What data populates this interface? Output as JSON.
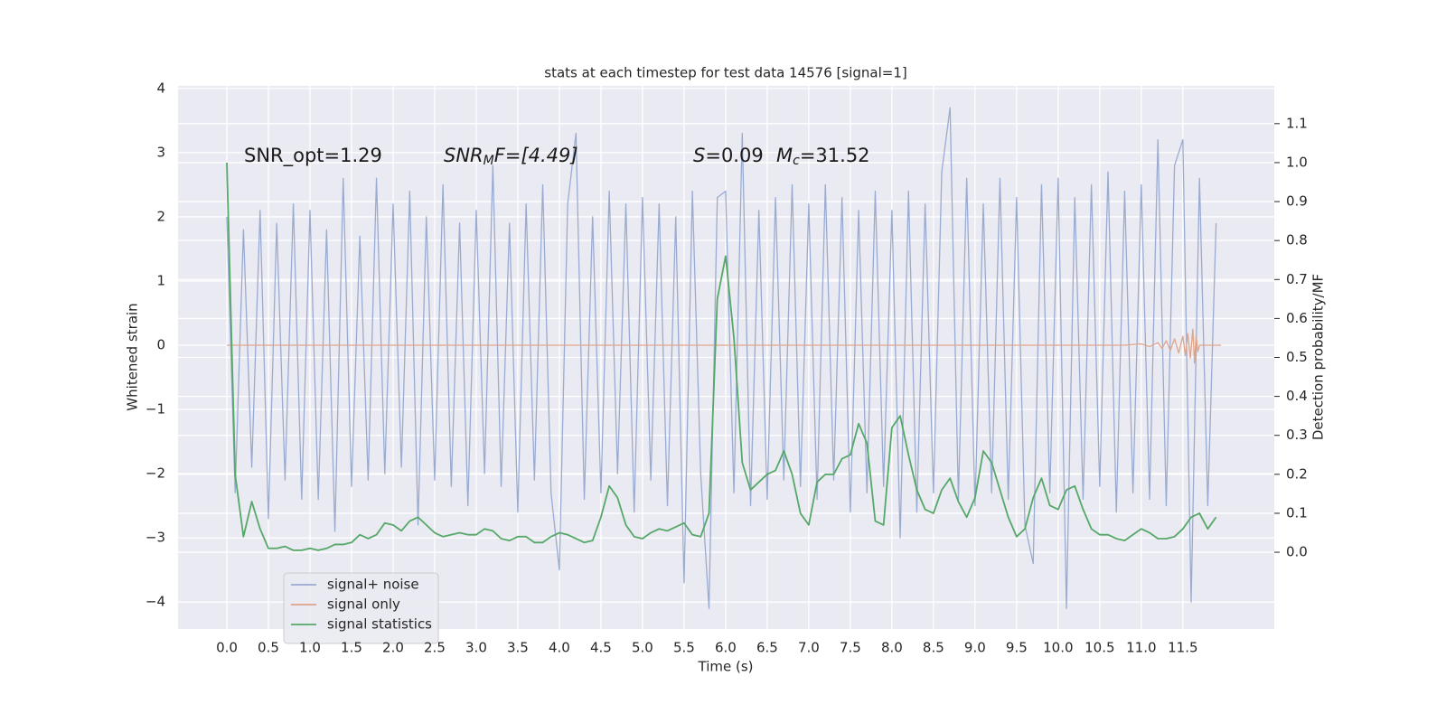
{
  "chart_data": {
    "type": "line",
    "title": "stats at each timestep for test data 14576 [signal=1]",
    "xlabel": "Time (s)",
    "ylabel": "Whitened strain",
    "y2label": "Detection probability/MF",
    "annotations": [
      [
        "SNR_opt=1.29"
      ],
      [
        "SNR",
        "M",
        "F=[4.49]"
      ],
      [
        "S",
        "=0.09"
      ],
      [
        "M",
        "c",
        "=31.52"
      ]
    ],
    "x": [
      0.0,
      0.1,
      0.2,
      0.3,
      0.4,
      0.5,
      0.6,
      0.7,
      0.8,
      0.9,
      1.0,
      1.1,
      1.2,
      1.3,
      1.4,
      1.5,
      1.6,
      1.7,
      1.8,
      1.9,
      2.0,
      2.1,
      2.2,
      2.3,
      2.4,
      2.5,
      2.6,
      2.7,
      2.8,
      2.9,
      3.0,
      3.1,
      3.2,
      3.3,
      3.4,
      3.5,
      3.6,
      3.7,
      3.8,
      3.9,
      4.0,
      4.1,
      4.2,
      4.3,
      4.4,
      4.5,
      4.6,
      4.7,
      4.8,
      4.9,
      5.0,
      5.1,
      5.2,
      5.3,
      5.4,
      5.5,
      5.6,
      5.7,
      5.8,
      5.9,
      6.0,
      6.1,
      6.2,
      6.3,
      6.4,
      6.5,
      6.6,
      6.7,
      6.8,
      6.9,
      7.0,
      7.1,
      7.2,
      7.3,
      7.4,
      7.5,
      7.6,
      7.7,
      7.8,
      7.9,
      8.0,
      8.1,
      8.2,
      8.3,
      8.4,
      8.5,
      8.6,
      8.7,
      8.8,
      8.9,
      9.0,
      9.1,
      9.2,
      9.3,
      9.4,
      9.5,
      9.6,
      9.7,
      9.8,
      9.9,
      10.0,
      10.1,
      10.2,
      10.3,
      10.4,
      10.5,
      10.6,
      10.7,
      10.8,
      10.9,
      11.0,
      11.1,
      11.2,
      11.3,
      11.4,
      11.5,
      11.6,
      11.7,
      11.8,
      11.9
    ],
    "series": [
      {
        "name": "signal+ noise",
        "color": "#9aabd1",
        "values": [
          2.0,
          -2.3,
          1.8,
          -1.9,
          2.1,
          -2.7,
          1.9,
          -2.1,
          2.2,
          -2.4,
          2.1,
          -2.4,
          1.8,
          -2.9,
          2.6,
          -2.2,
          1.7,
          -2.1,
          2.6,
          -2.0,
          2.2,
          -1.9,
          2.4,
          -2.8,
          2.0,
          -2.1,
          2.5,
          -2.2,
          1.9,
          -2.5,
          2.1,
          -2.0,
          2.8,
          -2.2,
          1.9,
          -2.6,
          2.2,
          -2.1,
          2.5,
          -2.3,
          -3.5,
          2.2,
          3.3,
          -2.4,
          2.0,
          -2.3,
          2.4,
          -2.0,
          2.2,
          -2.6,
          2.3,
          -2.1,
          2.2,
          -2.5,
          2.0,
          -3.7,
          2.4,
          -2.0,
          -4.1,
          2.3,
          2.4,
          -2.3,
          3.3,
          -2.5,
          2.1,
          -2.4,
          2.3,
          -2.1,
          2.5,
          -2.2,
          2.2,
          -2.4,
          2.5,
          -2.1,
          2.3,
          -2.6,
          2.1,
          -2.3,
          2.4,
          -2.2,
          2.1,
          -3.0,
          2.4,
          -2.6,
          2.2,
          -2.3,
          2.7,
          3.7,
          -2.4,
          2.6,
          -2.5,
          2.2,
          -2.3,
          2.6,
          -2.4,
          2.3,
          -2.8,
          -3.4,
          2.5,
          -2.3,
          2.6,
          -4.1,
          2.3,
          -2.4,
          2.5,
          -2.2,
          2.7,
          -2.6,
          2.4,
          -2.3,
          2.5,
          -2.4,
          3.2,
          -2.5,
          2.8,
          3.2,
          -4.0,
          2.6,
          -2.5,
          1.9
        ]
      },
      {
        "name": "signal only",
        "color": "#dfa58b",
        "x": [
          0,
          10.8,
          11.0,
          11.1,
          11.2,
          11.25,
          11.3,
          11.35,
          11.4,
          11.45,
          11.5,
          11.53,
          11.56,
          11.59,
          11.62,
          11.64,
          11.66,
          11.68,
          11.7,
          11.96
        ],
        "values": [
          0,
          0,
          0.02,
          -0.02,
          0.04,
          -0.05,
          0.07,
          -0.08,
          0.1,
          -0.12,
          0.14,
          -0.16,
          0.18,
          -0.2,
          0.25,
          -0.28,
          0.15,
          -0.1,
          0.0,
          0
        ]
      },
      {
        "name": "signal statistics",
        "color": "#55a868",
        "axis": "y2",
        "values": [
          1.0,
          0.2,
          0.04,
          0.13,
          0.06,
          0.01,
          0.01,
          0.015,
          0.005,
          0.005,
          0.01,
          0.005,
          0.01,
          0.02,
          0.02,
          0.025,
          0.045,
          0.035,
          0.045,
          0.075,
          0.07,
          0.055,
          0.08,
          0.09,
          0.07,
          0.05,
          0.04,
          0.045,
          0.05,
          0.045,
          0.045,
          0.06,
          0.055,
          0.035,
          0.03,
          0.04,
          0.04,
          0.025,
          0.025,
          0.04,
          0.05,
          0.045,
          0.035,
          0.025,
          0.03,
          0.09,
          0.17,
          0.14,
          0.07,
          0.04,
          0.035,
          0.05,
          0.06,
          0.055,
          0.065,
          0.075,
          0.045,
          0.04,
          0.1,
          0.65,
          0.76,
          0.55,
          0.23,
          0.16,
          0.18,
          0.2,
          0.21,
          0.26,
          0.2,
          0.1,
          0.07,
          0.18,
          0.2,
          0.2,
          0.24,
          0.25,
          0.33,
          0.28,
          0.08,
          0.07,
          0.32,
          0.35,
          0.25,
          0.16,
          0.11,
          0.1,
          0.16,
          0.19,
          0.13,
          0.09,
          0.14,
          0.26,
          0.23,
          0.16,
          0.09,
          0.04,
          0.06,
          0.14,
          0.19,
          0.12,
          0.11,
          0.16,
          0.17,
          0.11,
          0.06,
          0.045,
          0.045,
          0.035,
          0.03,
          0.045,
          0.06,
          0.05,
          0.035,
          0.035,
          0.04,
          0.06,
          0.09,
          0.1,
          0.06,
          0.09
        ]
      }
    ],
    "xlim": [
      -0.587,
      12.6
    ],
    "ylim": [
      -4.42,
      4.04
    ],
    "y2lim": [
      -0.197,
      1.197
    ],
    "xticks": [
      {
        "value": 0,
        "label": "0.0"
      },
      {
        "value": 0.5,
        "label": "0.5"
      },
      {
        "value": 1,
        "label": "1.0"
      },
      {
        "value": 1.5,
        "label": "1.5"
      },
      {
        "value": 2,
        "label": "2.0"
      },
      {
        "value": 2.5,
        "label": "2.5"
      },
      {
        "value": 3,
        "label": "3.0"
      },
      {
        "value": 3.5,
        "label": "3.5"
      },
      {
        "value": 4,
        "label": "4.0"
      },
      {
        "value": 4.5,
        "label": "4.5"
      },
      {
        "value": 5,
        "label": "5.0"
      },
      {
        "value": 5.5,
        "label": "5.5"
      },
      {
        "value": 6,
        "label": "6.0"
      },
      {
        "value": 6.5,
        "label": "6.5"
      },
      {
        "value": 7,
        "label": "7.0"
      },
      {
        "value": 7.5,
        "label": "7.5"
      },
      {
        "value": 8,
        "label": "8.0"
      },
      {
        "value": 8.5,
        "label": "8.5"
      },
      {
        "value": 9,
        "label": "9.0"
      },
      {
        "value": 9.5,
        "label": "9.5"
      },
      {
        "value": 10,
        "label": "10.0"
      },
      {
        "value": 10.5,
        "label": "10.5"
      },
      {
        "value": 11,
        "label": "11.0"
      },
      {
        "value": 11.5,
        "label": "11.5"
      }
    ],
    "yticks": [
      4,
      3,
      2,
      1,
      0,
      {
        "value": -1,
        "label": "−1"
      },
      {
        "value": -2,
        "label": "−2"
      },
      {
        "value": -3,
        "label": "−3"
      },
      {
        "value": -4,
        "label": "−4"
      }
    ],
    "y2ticks": [
      {
        "value": 0,
        "label": "0.0"
      },
      {
        "value": 0.1,
        "label": "0.1"
      },
      {
        "value": 0.2,
        "label": "0.2"
      },
      {
        "value": 0.3,
        "label": "0.3"
      },
      {
        "value": 0.4,
        "label": "0.4"
      },
      {
        "value": 0.5,
        "label": "0.5"
      },
      {
        "value": 0.6,
        "label": "0.6"
      },
      {
        "value": 0.7,
        "label": "0.7"
      },
      {
        "value": 0.8,
        "label": "0.8"
      },
      {
        "value": 0.9,
        "label": "0.9"
      },
      {
        "value": 1.0,
        "label": "1.0"
      },
      {
        "value": 1.1,
        "label": "1.1"
      }
    ],
    "grid": true,
    "legend": "lower left"
  }
}
